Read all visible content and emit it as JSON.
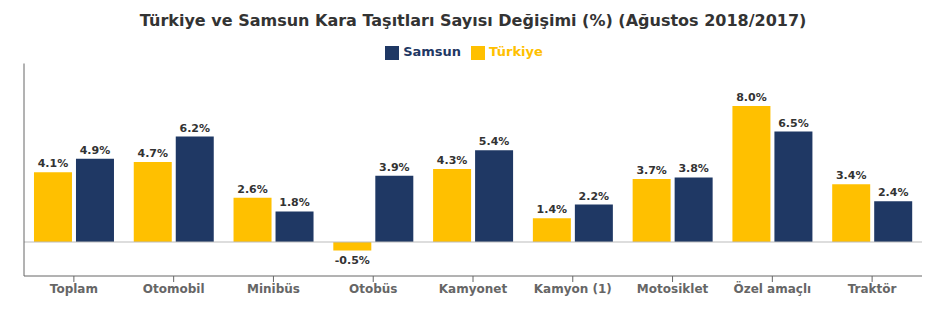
{
  "chart_data": {
    "type": "bar",
    "title": "Türkiye ve Samsun Kara Taşıtları Sayısı Değişimi (%) (Ağustos 2018/2017)",
    "categories": [
      "Toplam",
      "Otomobil",
      "Minibüs",
      "Otobüs",
      "Kamyonet",
      "Kamyon (1)",
      "Motosiklet",
      "Özel amaçlı",
      "Traktör"
    ],
    "series": [
      {
        "name": "Türkiye",
        "color": "#FFC000",
        "values": [
          4.1,
          4.7,
          2.6,
          -0.5,
          4.3,
          1.4,
          3.7,
          8.0,
          3.4
        ],
        "value_labels": [
          "4.1%",
          "4.7%",
          "2.6%",
          "-0.5%",
          "4.3%",
          "1.4%",
          "3.7%",
          "8.0%",
          "3.4%"
        ]
      },
      {
        "name": "Samsun",
        "color": "#1F3864",
        "values": [
          4.9,
          6.2,
          1.8,
          3.9,
          5.4,
          2.2,
          3.8,
          6.5,
          2.4
        ],
        "value_labels": [
          "4.9%",
          "6.2%",
          "1.8%",
          "3.9%",
          "5.4%",
          "2.2%",
          "3.8%",
          "6.5%",
          "2.4%"
        ]
      }
    ],
    "ylim": [
      -2,
      10.5
    ],
    "grid": false,
    "legend": "top",
    "data_labels": true,
    "tick_labels": "x"
  }
}
